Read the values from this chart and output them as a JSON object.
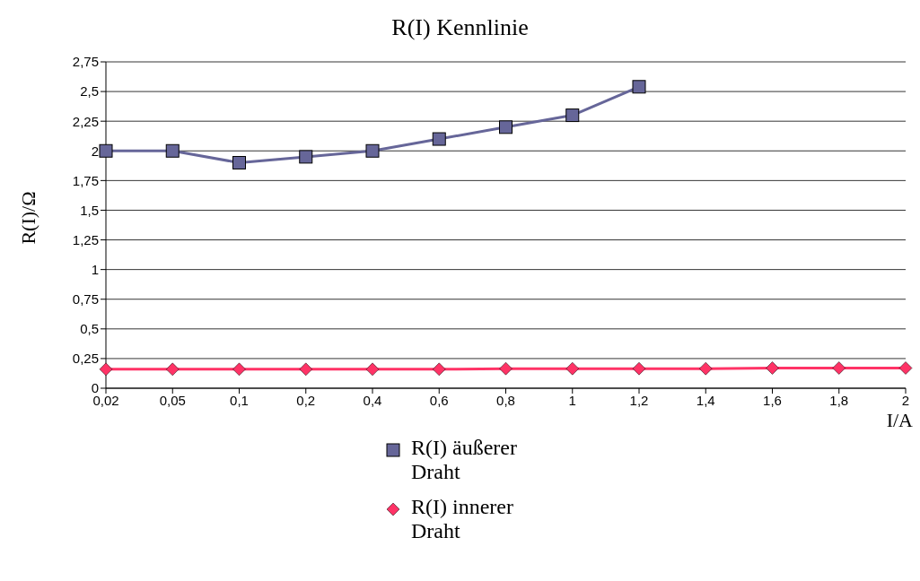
{
  "chart_data": {
    "type": "line",
    "title": "R(I) Kennlinie",
    "xlabel": "I/A",
    "ylabel": "R(I)/Ω",
    "categories": [
      "0,02",
      "0,05",
      "0,1",
      "0,2",
      "0,4",
      "0,6",
      "0,8",
      "1",
      "1,2",
      "1,4",
      "1,6",
      "1,8",
      "2"
    ],
    "series": [
      {
        "name": "R(I) äußerer Draht",
        "color": "#666699",
        "marker": "square",
        "values": [
          2,
          2,
          1.9,
          1.95,
          2,
          2.1,
          2.2,
          2.3,
          2.54,
          null,
          null,
          null,
          null
        ]
      },
      {
        "name": "R(I) innerer Draht",
        "color": "#ff3366",
        "marker": "diamond",
        "values": [
          0.16,
          0.16,
          0.16,
          0.16,
          0.16,
          0.16,
          0.165,
          0.165,
          0.165,
          0.165,
          0.17,
          0.17,
          0.17
        ]
      }
    ],
    "ylim": [
      0,
      2.75
    ],
    "yticks": [
      0,
      {
        "value": 0.25,
        "label": "0,25"
      },
      {
        "value": 0.5,
        "label": "0,5"
      },
      {
        "value": 0.75,
        "label": "0,75"
      },
      1,
      {
        "value": 1.25,
        "label": "1,25"
      },
      {
        "value": 1.5,
        "label": "1,5"
      },
      {
        "value": 1.75,
        "label": "1,75"
      },
      2,
      {
        "value": 2.25,
        "label": "2,25"
      },
      {
        "value": 2.5,
        "label": "2,5"
      },
      {
        "value": 2.75,
        "label": "2,75"
      }
    ],
    "grid": "y",
    "legend": "bottom",
    "line_style": "solid"
  }
}
